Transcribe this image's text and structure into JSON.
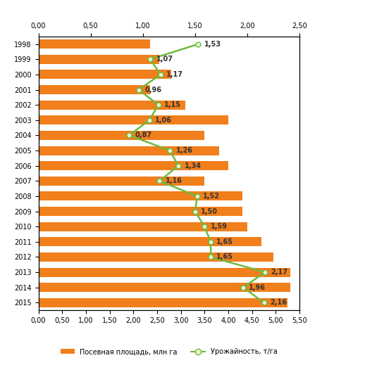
{
  "chart_data": {
    "type": "bar",
    "orientation": "horizontal",
    "categories": [
      "1998",
      "1999",
      "2000",
      "2001",
      "2002",
      "2003",
      "2004",
      "2005",
      "2006",
      "2007",
      "2008",
      "2009",
      "2010",
      "2011",
      "2012",
      "2013",
      "2014",
      "2015"
    ],
    "series": [
      {
        "name": "Посевная площадь, млн га",
        "type": "bar",
        "color": "#f07f1c",
        "values": [
          2.35,
          2.55,
          2.8,
          2.35,
          3.1,
          4.0,
          3.5,
          3.8,
          4.0,
          3.5,
          4.3,
          4.3,
          4.4,
          4.7,
          4.95,
          5.3,
          5.3,
          5.25
        ]
      },
      {
        "name": "Урожайность, т/га",
        "type": "line",
        "color": "#6dbb3b",
        "marker": "o",
        "line_style": "solid",
        "axis": "x2",
        "data_labels": true,
        "values": [
          1.53,
          1.07,
          1.17,
          0.96,
          1.15,
          1.06,
          0.87,
          1.26,
          1.34,
          1.16,
          1.52,
          1.5,
          1.59,
          1.65,
          1.65,
          2.17,
          1.96,
          2.16
        ],
        "value_labels": [
          "1,53",
          "1,07",
          "1,17",
          "0,96",
          "1,15",
          "1,06",
          "0,87",
          "1,26",
          "1,34",
          "1,16",
          "1,52",
          "1,50",
          "1,59",
          "1,65",
          "1,65",
          "2,17",
          "1,96",
          "2,16"
        ]
      }
    ],
    "xlim": [
      0,
      5.5
    ],
    "xticks": [
      {
        "value": 0,
        "label": "0,00"
      },
      {
        "value": 0.5,
        "label": "0,50"
      },
      {
        "value": 1,
        "label": "1,00"
      },
      {
        "value": 1.5,
        "label": "1,50"
      },
      {
        "value": 2,
        "label": "2,00"
      },
      {
        "value": 2.5,
        "label": "2,50"
      },
      {
        "value": 3,
        "label": "3,00"
      },
      {
        "value": 3.5,
        "label": "3,50"
      },
      {
        "value": 4,
        "label": "4,00"
      },
      {
        "value": 4.5,
        "label": "4,50"
      },
      {
        "value": 5,
        "label": "5,00"
      },
      {
        "value": 5.5,
        "label": "5,50"
      }
    ],
    "x2lim": [
      0,
      2.5
    ],
    "x2ticks": [
      {
        "value": 0,
        "label": "0,00"
      },
      {
        "value": 0.5,
        "label": "0,50"
      },
      {
        "value": 1,
        "label": "1,00"
      },
      {
        "value": 1.5,
        "label": "1,50"
      },
      {
        "value": 2,
        "label": "2,00"
      },
      {
        "value": 2.5,
        "label": "2,50"
      }
    ],
    "legend": "lower center",
    "grid": false
  }
}
